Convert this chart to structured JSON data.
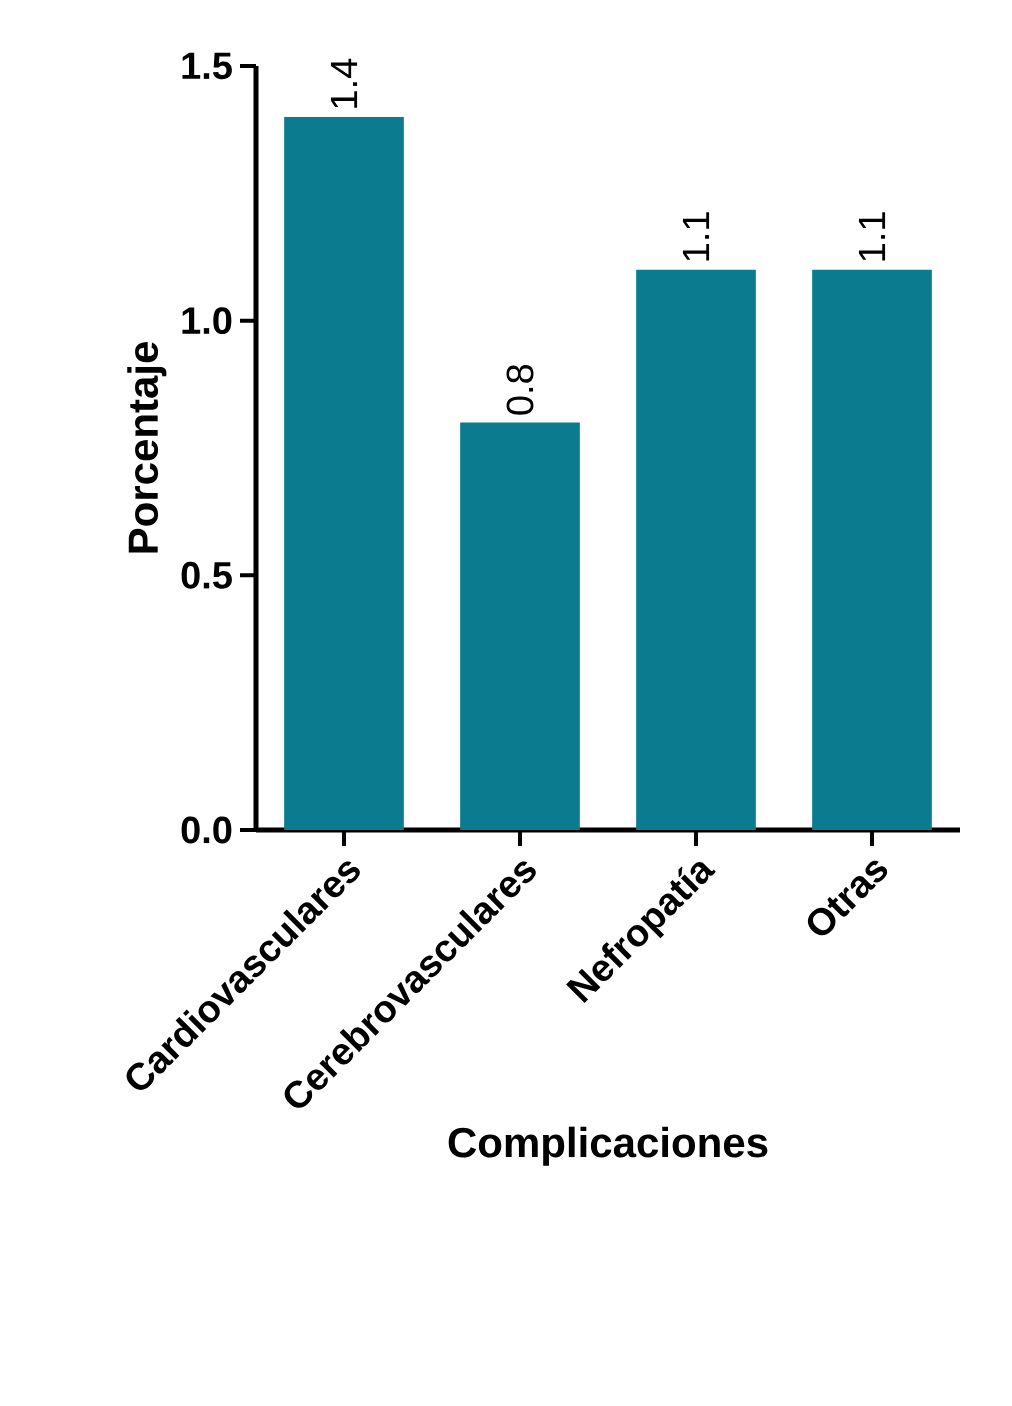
{
  "chart_data": {
    "type": "bar",
    "xlabel": "Complicaciones",
    "ylabel": "Porcentaje",
    "categories": [
      "Cardiovasculares",
      "Cerebrovasculares",
      "Nefropatía",
      "Otras"
    ],
    "values": [
      1.4,
      0.8,
      1.1,
      1.1
    ],
    "color": "#0b7b8f",
    "ylim": [
      0,
      1.5
    ],
    "yticks": [
      {
        "value": 0,
        "label": "0.0"
      },
      {
        "value": 0.5,
        "label": "0.5"
      },
      {
        "value": 1.0,
        "label": "1.0"
      },
      {
        "value": 1.5,
        "label": "1.5"
      }
    ],
    "data_labels": true,
    "grid": false
  }
}
